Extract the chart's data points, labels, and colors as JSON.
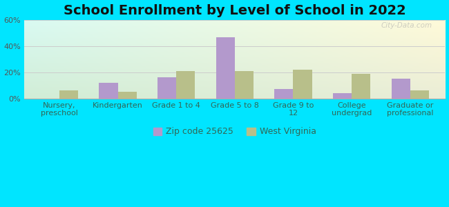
{
  "title": "School Enrollment by Level of School in 2022",
  "categories": [
    "Nursery,\npreschool",
    "Kindergarten",
    "Grade 1 to 4",
    "Grade 5 to 8",
    "Grade 9 to\n12",
    "College\nundergrad",
    "Graduate or\nprofessional"
  ],
  "zip_values": [
    0,
    12,
    16,
    47,
    7,
    4,
    15
  ],
  "wv_values": [
    6,
    5,
    21,
    21,
    22,
    19,
    6
  ],
  "zip_color": "#b399cc",
  "wv_color": "#b8bf8a",
  "zip_label": "Zip code 25625",
  "wv_label": "West Virginia",
  "ylim": [
    0,
    60
  ],
  "yticks": [
    0,
    20,
    40,
    60
  ],
  "ytick_labels": [
    "0%",
    "20%",
    "40%",
    "60%"
  ],
  "background_outer": "#00e5ff",
  "watermark": "City-Data.com",
  "title_fontsize": 14,
  "tick_fontsize": 8,
  "bar_width": 0.32,
  "grid_color": "#cccccc",
  "inner_bg_left": "#b8f0e0",
  "inner_bg_right_top": "#f5fff5",
  "inner_bg_right_bottom": "#d8eedd"
}
